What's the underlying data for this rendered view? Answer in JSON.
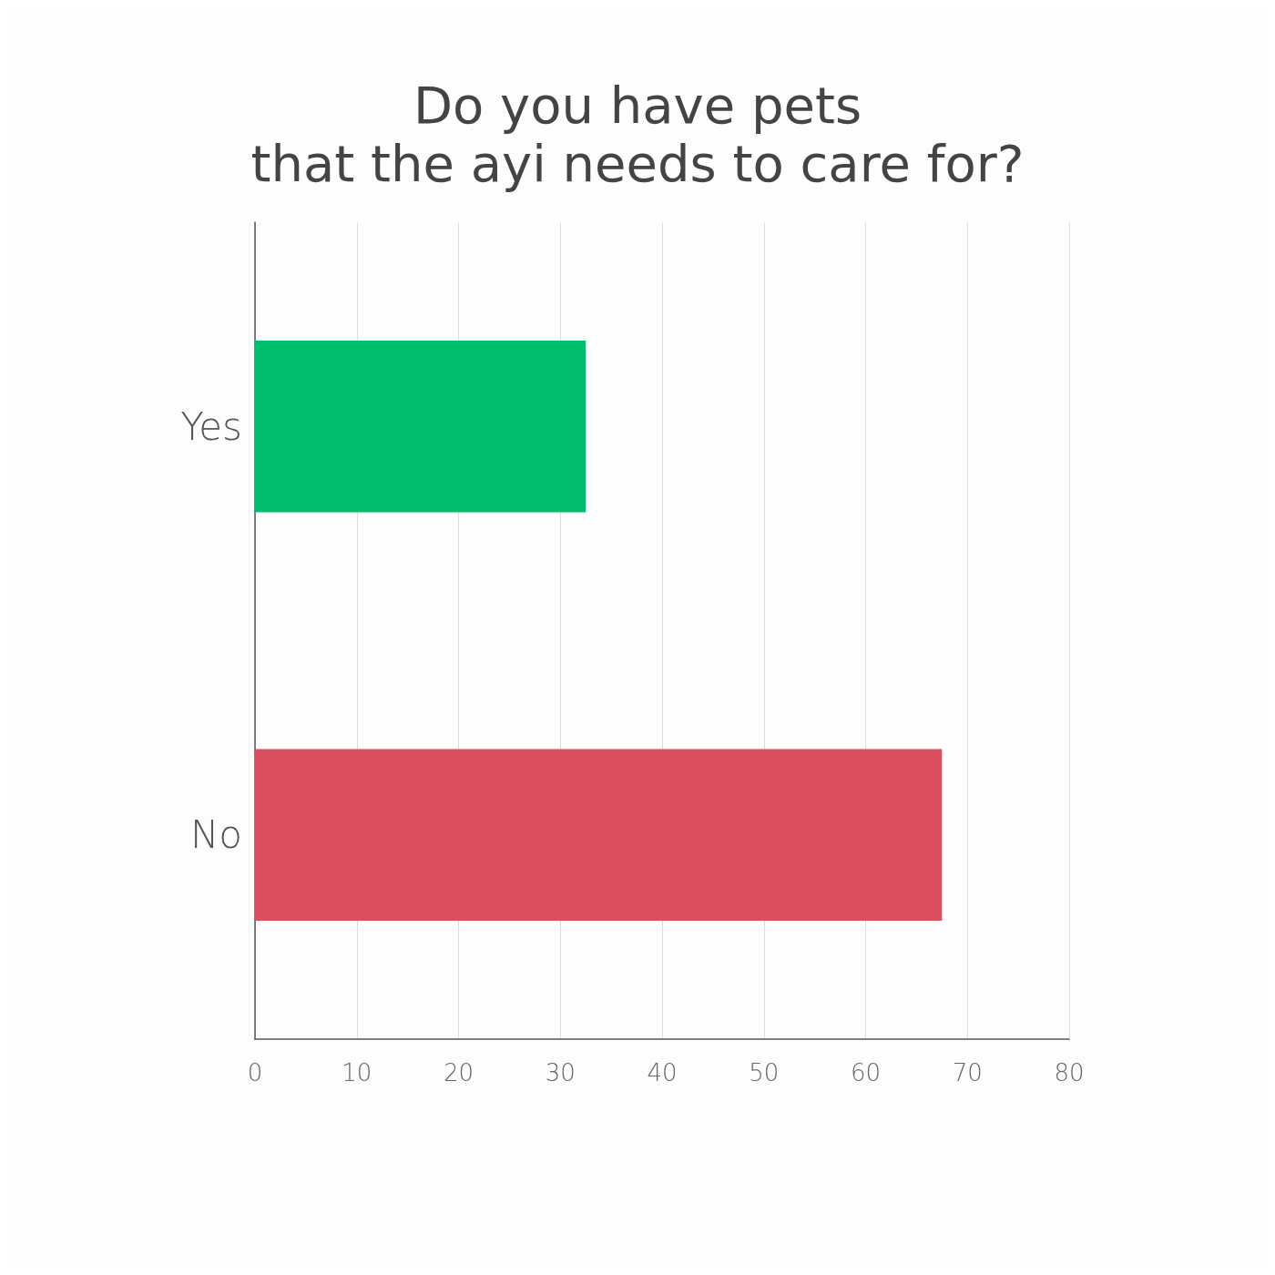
{
  "chart_data": {
    "type": "bar",
    "orientation": "horizontal",
    "title": "Do you have pets\nthat the ayi needs to care for?",
    "categories": [
      "Yes",
      "No"
    ],
    "values": [
      32.5,
      67.5
    ],
    "colors": [
      "#00be6e",
      "#dc4f5f"
    ],
    "xlim": [
      0,
      80
    ],
    "xticks": [
      0,
      10,
      20,
      30,
      40,
      50,
      60,
      70,
      80
    ],
    "grid": "x"
  }
}
